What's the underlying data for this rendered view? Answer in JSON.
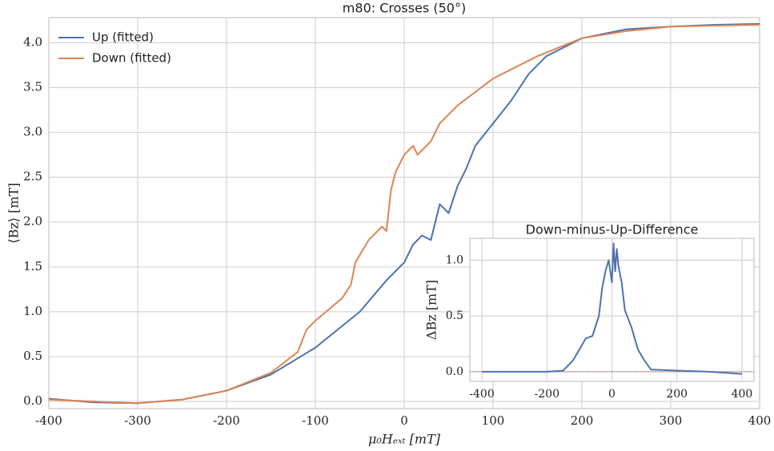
{
  "chart_data": [
    {
      "type": "line",
      "title": "m80: Crosses (50°)",
      "x_label": "μ₀Hₑₓₜ [mT]",
      "y_label": "⟨Bz⟩ [mT]",
      "xlim": [
        -400,
        400
      ],
      "ylim": [
        -0.08,
        4.28
      ],
      "xticks": [
        -400,
        -300,
        -200,
        -100,
        0,
        100,
        200,
        300,
        400
      ],
      "yticks": [
        {
          "value": 0,
          "label": "0.0"
        },
        {
          "value": 0.5,
          "label": "0.5"
        },
        {
          "value": 1,
          "label": "1.0"
        },
        {
          "value": 1.5,
          "label": "1.5"
        },
        {
          "value": 2,
          "label": "2.0"
        },
        {
          "value": 2.5,
          "label": "2.5"
        },
        {
          "value": 3,
          "label": "3.0"
        },
        {
          "value": 3.5,
          "label": "3.5"
        },
        {
          "value": 4,
          "label": "4.0"
        }
      ],
      "grid": true,
      "legend": "upper-left",
      "series": [
        {
          "name": "Up (fitted)",
          "color": "#4c72b0",
          "x": [
            -400,
            -350,
            -300,
            -250,
            -200,
            -150,
            -100,
            -50,
            -20,
            0,
            10,
            20,
            30,
            40,
            50,
            60,
            70,
            80,
            100,
            120,
            140,
            160,
            200,
            250,
            300,
            350,
            400
          ],
          "values": [
            0.03,
            -0.01,
            -0.02,
            0.02,
            0.12,
            0.3,
            0.6,
            1.0,
            1.35,
            1.55,
            1.75,
            1.85,
            1.8,
            2.2,
            2.1,
            2.4,
            2.6,
            2.85,
            3.1,
            3.35,
            3.65,
            3.85,
            4.05,
            4.15,
            4.18,
            4.2,
            4.21
          ]
        },
        {
          "name": "Down (fitted)",
          "color": "#dd8452",
          "x": [
            -400,
            -300,
            -250,
            -200,
            -150,
            -120,
            -110,
            -100,
            -70,
            -60,
            -55,
            -40,
            -25,
            -20,
            -15,
            -10,
            0,
            10,
            15,
            30,
            40,
            60,
            100,
            150,
            200,
            250,
            300,
            400
          ],
          "values": [
            0.02,
            -0.02,
            0.02,
            0.12,
            0.32,
            0.55,
            0.8,
            0.9,
            1.15,
            1.3,
            1.55,
            1.8,
            1.95,
            1.9,
            2.35,
            2.55,
            2.75,
            2.85,
            2.75,
            2.9,
            3.1,
            3.3,
            3.6,
            3.85,
            4.05,
            4.13,
            4.18,
            4.2
          ]
        }
      ]
    },
    {
      "type": "line",
      "title": "Down-minus-Up-Difference",
      "y_label": "ΔBz [mT]",
      "xlim": [
        -437,
        437
      ],
      "ylim": [
        -0.087,
        1.196
      ],
      "xticks": [
        -400,
        -200,
        0,
        200,
        400
      ],
      "yticks": [
        {
          "value": 0,
          "label": "0.0"
        },
        {
          "value": 0.5,
          "label": "0.5"
        },
        {
          "value": 1,
          "label": "1.0"
        }
      ],
      "grid": true,
      "hline": 0,
      "hline_color": "#c44e52",
      "x": [
        -400,
        -300,
        -200,
        -150,
        -120,
        -100,
        -80,
        -60,
        -40,
        -30,
        -20,
        -10,
        0,
        5,
        10,
        15,
        20,
        30,
        40,
        60,
        80,
        100,
        120,
        200,
        300,
        400
      ],
      "values": [
        0,
        0,
        0,
        0.01,
        0.1,
        0.2,
        0.3,
        0.32,
        0.5,
        0.75,
        0.9,
        1.0,
        0.8,
        1.15,
        0.9,
        1.1,
        0.95,
        0.8,
        0.55,
        0.4,
        0.2,
        0.1,
        0.02,
        0.01,
        0,
        -0.02
      ],
      "color": "#4c72b0"
    }
  ]
}
